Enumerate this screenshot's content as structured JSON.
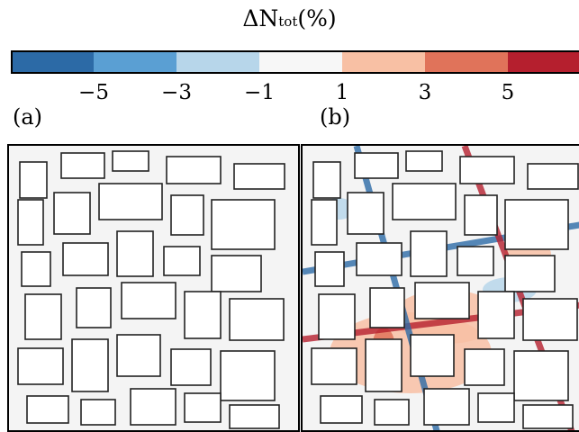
{
  "chart_data": {
    "type": "heatmap",
    "title": "ΔN",
    "title_subscript": "tot",
    "title_suffix": "(%)",
    "colorbar": {
      "orientation": "horizontal",
      "placement": "top",
      "bins": [
        -7,
        -5,
        -3,
        -1,
        1,
        3,
        5,
        7
      ],
      "colors": [
        "#2c6aa6",
        "#5a9fd3",
        "#b7d6ea",
        "#f7f7f7",
        "#f8c0a4",
        "#e0735a",
        "#b51f2e"
      ],
      "tick_values": [
        -5,
        -3,
        -1,
        1,
        3,
        5
      ],
      "tick_labels": [
        "−5",
        "−3",
        "−1",
        "1",
        "3",
        "5"
      ]
    },
    "panels": [
      {
        "label": "(a)"
      },
      {
        "label": "(b)"
      }
    ]
  }
}
